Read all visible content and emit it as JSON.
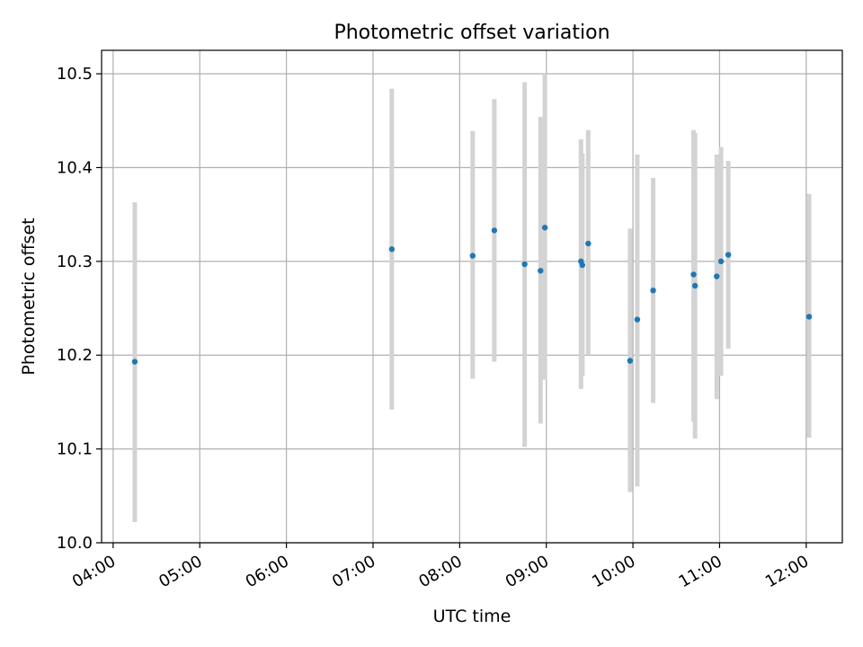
{
  "chart_data": {
    "type": "scatter",
    "title": "Photometric offset variation",
    "xlabel": "UTC time",
    "ylabel": "Photometric offset",
    "x_tick_labels": [
      "04:00",
      "05:00",
      "06:00",
      "07:00",
      "08:00",
      "09:00",
      "10:00",
      "11:00",
      "12:00"
    ],
    "y_tick_labels": [
      "10.0",
      "10.1",
      "10.2",
      "10.3",
      "10.4",
      "10.5"
    ],
    "xlim": [
      "03:52",
      "12:25"
    ],
    "ylim": [
      10.0,
      10.525
    ],
    "grid": true,
    "colors": {
      "points": "#1f77b4",
      "errorbars": "#d3d3d3",
      "grid": "#b0b0b0"
    },
    "series": [
      {
        "points": [
          {
            "x": "04:15",
            "y": 10.193,
            "lo": 10.022,
            "hi": 10.363
          },
          {
            "x": "07:13",
            "y": 10.313,
            "lo": 10.142,
            "hi": 10.484
          },
          {
            "x": "08:09",
            "y": 10.306,
            "lo": 10.175,
            "hi": 10.439
          },
          {
            "x": "08:24",
            "y": 10.333,
            "lo": 10.193,
            "hi": 10.473
          },
          {
            "x": "08:45",
            "y": 10.297,
            "lo": 10.102,
            "hi": 10.491
          },
          {
            "x": "08:56",
            "y": 10.29,
            "lo": 10.127,
            "hi": 10.454
          },
          {
            "x": "08:59",
            "y": 10.336,
            "lo": 10.174,
            "hi": 10.5
          },
          {
            "x": "09:24",
            "y": 10.3,
            "lo": 10.164,
            "hi": 10.43
          },
          {
            "x": "09:25",
            "y": 10.296,
            "lo": 10.178,
            "hi": 10.415
          },
          {
            "x": "09:29",
            "y": 10.319,
            "lo": 10.2,
            "hi": 10.44
          },
          {
            "x": "09:58",
            "y": 10.194,
            "lo": 10.054,
            "hi": 10.335
          },
          {
            "x": "10:03",
            "y": 10.238,
            "lo": 10.06,
            "hi": 10.414
          },
          {
            "x": "10:14",
            "y": 10.269,
            "lo": 10.149,
            "hi": 10.389
          },
          {
            "x": "10:42",
            "y": 10.286,
            "lo": 10.129,
            "hi": 10.44
          },
          {
            "x": "10:43",
            "y": 10.274,
            "lo": 10.111,
            "hi": 10.437
          },
          {
            "x": "10:58",
            "y": 10.284,
            "lo": 10.153,
            "hi": 10.414
          },
          {
            "x": "11:01",
            "y": 10.3,
            "lo": 10.178,
            "hi": 10.422
          },
          {
            "x": "11:06",
            "y": 10.307,
            "lo": 10.207,
            "hi": 10.407
          },
          {
            "x": "12:02",
            "y": 10.241,
            "lo": 10.112,
            "hi": 10.372
          }
        ]
      }
    ]
  }
}
